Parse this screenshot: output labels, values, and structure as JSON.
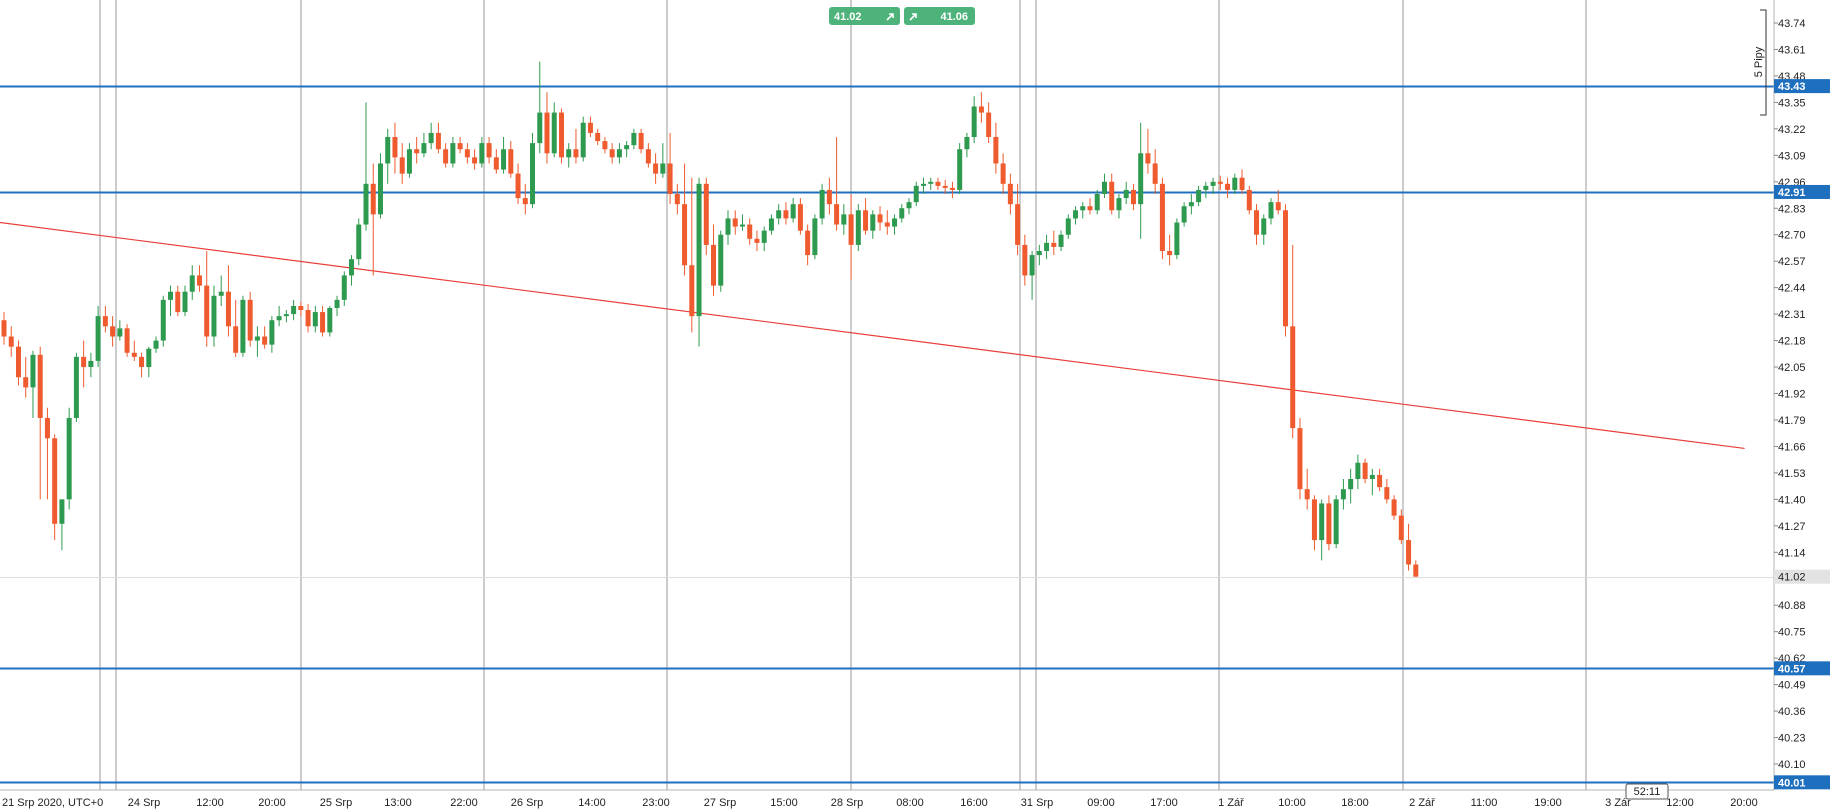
{
  "quote_buttons": {
    "sell_price": "41.02",
    "buy_price": "41.06",
    "sell_arrow": "arrow-up-right-icon",
    "buy_arrow": "arrow-up-right-icon"
  },
  "pip_ruler_label": "5 Pipy",
  "countdown": "52:11",
  "colors": {
    "up": "#2e9a4f",
    "down": "#ef5a2e",
    "hline": "#1f6fbf",
    "trend": "#e8403b",
    "grid": "#9a9a9a",
    "button": "#4db37a"
  },
  "chart_data": {
    "type": "candlestick",
    "title": "",
    "xlabel": "",
    "ylabel": "",
    "ylim": [
      40.0,
      43.8
    ],
    "grid": "vertical-only",
    "y_ticks": [
      "43.74",
      "43.61",
      "43.48",
      "43.35",
      "43.22",
      "43.09",
      "42.96",
      "42.83",
      "42.70",
      "42.57",
      "42.44",
      "42.31",
      "42.18",
      "42.05",
      "41.92",
      "41.79",
      "41.66",
      "41.53",
      "41.40",
      "41.27",
      "41.14",
      "40.88",
      "40.75",
      "40.62",
      "40.49",
      "40.36",
      "40.23",
      "40.10"
    ],
    "x_labels": [
      "21 Srp 2020, UTC+0",
      "24 Srp",
      "12:00",
      "20:00",
      "25 Srp",
      "13:00",
      "22:00",
      "26 Srp",
      "14:00",
      "23:00",
      "27 Srp",
      "15:00",
      "28 Srp",
      "08:00",
      "16:00",
      "31 Srp",
      "09:00",
      "17:00",
      "1 Zář",
      "10:00",
      "18:00",
      "2 Zář",
      "11:00",
      "19:00",
      "3 Zář",
      "12:00",
      "20:00"
    ],
    "horizontal_lines": [
      {
        "price": 43.43,
        "label": "43.43"
      },
      {
        "price": 42.91,
        "label": "42.91"
      },
      {
        "price": 40.57,
        "label": "40.57"
      },
      {
        "price": 40.01,
        "label": "40.01"
      }
    ],
    "current_price": {
      "price": 41.02,
      "label": "41.02"
    },
    "trendline": {
      "from": {
        "index": 0,
        "price": 42.76
      },
      "to": {
        "index": 240,
        "price": 41.65
      }
    },
    "candles": [
      [
        42.28,
        42.32,
        42.16,
        42.2
      ],
      [
        42.2,
        42.25,
        42.1,
        42.15
      ],
      [
        42.15,
        42.18,
        41.96,
        42.0
      ],
      [
        42.0,
        42.1,
        41.9,
        41.95
      ],
      [
        41.95,
        42.13,
        41.8,
        42.11
      ],
      [
        42.11,
        42.15,
        41.4,
        41.8
      ],
      [
        41.8,
        41.85,
        41.4,
        41.7
      ],
      [
        41.7,
        41.72,
        41.2,
        41.28
      ],
      [
        41.28,
        41.4,
        41.15,
        41.4
      ],
      [
        41.4,
        41.85,
        41.35,
        41.8
      ],
      [
        41.8,
        42.12,
        41.78,
        42.1
      ],
      [
        42.1,
        42.18,
        41.95,
        42.05
      ],
      [
        42.05,
        42.12,
        42.0,
        42.08
      ],
      [
        42.08,
        42.35,
        42.05,
        42.3
      ],
      [
        42.3,
        42.35,
        42.22,
        42.25
      ],
      [
        42.25,
        42.3,
        42.15,
        42.2
      ],
      [
        42.2,
        42.28,
        42.18,
        42.24
      ],
      [
        42.24,
        42.26,
        42.1,
        42.12
      ],
      [
        42.12,
        42.18,
        42.08,
        42.1
      ],
      [
        42.1,
        42.12,
        42.0,
        42.05
      ],
      [
        42.05,
        42.15,
        42.0,
        42.14
      ],
      [
        42.14,
        42.2,
        42.12,
        42.18
      ],
      [
        42.18,
        42.4,
        42.15,
        42.38
      ],
      [
        42.38,
        42.45,
        42.3,
        42.42
      ],
      [
        42.42,
        42.45,
        42.3,
        42.32
      ],
      [
        42.32,
        42.45,
        42.3,
        42.42
      ],
      [
        42.42,
        42.55,
        42.38,
        42.5
      ],
      [
        42.5,
        42.55,
        42.42,
        42.45
      ],
      [
        42.45,
        42.62,
        42.15,
        42.2
      ],
      [
        42.2,
        42.45,
        42.15,
        42.4
      ],
      [
        42.4,
        42.5,
        42.35,
        42.42
      ],
      [
        42.42,
        42.55,
        42.2,
        42.25
      ],
      [
        42.25,
        42.38,
        42.1,
        42.12
      ],
      [
        42.12,
        42.4,
        42.1,
        42.38
      ],
      [
        42.38,
        42.42,
        42.15,
        42.18
      ],
      [
        42.18,
        42.25,
        42.1,
        42.2
      ],
      [
        42.2,
        42.25,
        42.14,
        42.16
      ],
      [
        42.16,
        42.3,
        42.12,
        42.28
      ],
      [
        42.28,
        42.35,
        42.25,
        42.3
      ],
      [
        42.3,
        42.33,
        42.27,
        42.31
      ],
      [
        42.31,
        42.38,
        42.28,
        42.35
      ],
      [
        42.35,
        42.37,
        42.3,
        42.33
      ],
      [
        42.33,
        42.36,
        42.22,
        42.25
      ],
      [
        42.25,
        42.35,
        42.22,
        42.32
      ],
      [
        42.32,
        42.35,
        42.2,
        42.22
      ],
      [
        42.22,
        42.35,
        42.2,
        42.34
      ],
      [
        42.34,
        42.4,
        42.3,
        42.38
      ],
      [
        42.38,
        42.52,
        42.35,
        42.5
      ],
      [
        42.5,
        42.6,
        42.45,
        42.58
      ],
      [
        42.58,
        42.78,
        42.55,
        42.75
      ],
      [
        42.75,
        43.35,
        42.72,
        42.95
      ],
      [
        42.95,
        43.05,
        42.5,
        42.8
      ],
      [
        42.8,
        43.1,
        42.78,
        43.05
      ],
      [
        43.05,
        43.22,
        42.95,
        43.18
      ],
      [
        43.18,
        43.25,
        43.0,
        43.08
      ],
      [
        43.08,
        43.15,
        42.95,
        43.0
      ],
      [
        43.0,
        43.15,
        42.98,
        43.12
      ],
      [
        43.12,
        43.18,
        43.05,
        43.1
      ],
      [
        43.1,
        43.2,
        43.08,
        43.15
      ],
      [
        43.15,
        43.25,
        43.12,
        43.2
      ],
      [
        43.2,
        43.25,
        43.1,
        43.12
      ],
      [
        43.12,
        43.15,
        43.03,
        43.05
      ],
      [
        43.05,
        43.18,
        43.03,
        43.15
      ],
      [
        43.15,
        43.18,
        43.1,
        43.12
      ],
      [
        43.12,
        43.15,
        43.05,
        43.08
      ],
      [
        43.08,
        43.12,
        43.02,
        43.05
      ],
      [
        43.05,
        43.18,
        43.03,
        43.15
      ],
      [
        43.15,
        43.18,
        43.05,
        43.08
      ],
      [
        43.08,
        43.12,
        43.0,
        43.02
      ],
      [
        43.02,
        43.18,
        43.0,
        43.12
      ],
      [
        43.12,
        43.16,
        42.98,
        43.0
      ],
      [
        43.0,
        43.05,
        42.85,
        42.88
      ],
      [
        42.88,
        42.95,
        42.8,
        42.85
      ],
      [
        42.85,
        43.2,
        42.83,
        43.15
      ],
      [
        43.15,
        43.55,
        43.1,
        43.3
      ],
      [
        43.3,
        43.4,
        43.05,
        43.1
      ],
      [
        43.1,
        43.35,
        43.08,
        43.3
      ],
      [
        43.3,
        43.32,
        43.05,
        43.08
      ],
      [
        43.08,
        43.15,
        43.03,
        43.12
      ],
      [
        43.12,
        43.22,
        43.05,
        43.08
      ],
      [
        43.08,
        43.28,
        43.06,
        43.25
      ],
      [
        43.25,
        43.28,
        43.18,
        43.2
      ],
      [
        43.2,
        43.22,
        43.14,
        43.16
      ],
      [
        43.16,
        43.18,
        43.1,
        43.12
      ],
      [
        43.12,
        43.15,
        43.05,
        43.08
      ],
      [
        43.08,
        43.15,
        43.05,
        43.12
      ],
      [
        43.12,
        43.16,
        43.08,
        43.14
      ],
      [
        43.14,
        43.22,
        43.12,
        43.2
      ],
      [
        43.2,
        43.22,
        43.1,
        43.12
      ],
      [
        43.12,
        43.15,
        43.03,
        43.05
      ],
      [
        43.05,
        43.1,
        42.95,
        43.0
      ],
      [
        43.0,
        43.15,
        42.98,
        43.05
      ],
      [
        43.05,
        43.2,
        42.85,
        42.9
      ],
      [
        42.9,
        42.95,
        42.8,
        42.85
      ],
      [
        42.85,
        43.05,
        42.5,
        42.55
      ],
      [
        42.55,
        42.98,
        42.22,
        42.3
      ],
      [
        42.3,
        42.98,
        42.15,
        42.95
      ],
      [
        42.95,
        42.98,
        42.6,
        42.65
      ],
      [
        42.65,
        42.75,
        42.4,
        42.45
      ],
      [
        42.45,
        42.72,
        42.42,
        42.7
      ],
      [
        42.7,
        42.82,
        42.65,
        42.78
      ],
      [
        42.78,
        42.82,
        42.7,
        42.74
      ],
      [
        42.74,
        42.8,
        42.72,
        42.75
      ],
      [
        42.75,
        42.78,
        42.65,
        42.68
      ],
      [
        42.68,
        42.72,
        42.62,
        42.66
      ],
      [
        42.66,
        42.74,
        42.62,
        42.72
      ],
      [
        42.72,
        42.8,
        42.7,
        42.78
      ],
      [
        42.78,
        42.85,
        42.75,
        42.82
      ],
      [
        42.82,
        42.86,
        42.75,
        42.78
      ],
      [
        42.78,
        42.88,
        42.76,
        42.85
      ],
      [
        42.85,
        42.88,
        42.7,
        42.72
      ],
      [
        42.72,
        42.75,
        42.55,
        42.6
      ],
      [
        42.6,
        42.8,
        42.58,
        42.78
      ],
      [
        42.78,
        42.95,
        42.75,
        42.92
      ],
      [
        42.92,
        42.98,
        42.8,
        42.85
      ],
      [
        42.85,
        43.18,
        42.72,
        42.75
      ],
      [
        42.75,
        42.85,
        42.7,
        42.8
      ],
      [
        42.8,
        42.9,
        42.48,
        42.65
      ],
      [
        42.65,
        42.85,
        42.62,
        42.82
      ],
      [
        42.82,
        42.88,
        42.7,
        42.72
      ],
      [
        42.72,
        42.82,
        42.68,
        42.8
      ],
      [
        42.8,
        42.84,
        42.72,
        42.76
      ],
      [
        42.76,
        42.82,
        42.7,
        42.74
      ],
      [
        42.74,
        42.8,
        42.7,
        42.78
      ],
      [
        42.78,
        42.85,
        42.76,
        42.83
      ],
      [
        42.83,
        42.88,
        42.8,
        42.86
      ],
      [
        42.86,
        42.96,
        42.84,
        42.94
      ],
      [
        42.94,
        42.98,
        42.9,
        42.95
      ],
      [
        42.95,
        42.98,
        42.92,
        42.96
      ],
      [
        42.96,
        42.98,
        42.92,
        42.94
      ],
      [
        42.94,
        42.97,
        42.9,
        42.93
      ],
      [
        42.93,
        42.96,
        42.88,
        42.92
      ],
      [
        42.92,
        43.15,
        42.9,
        43.12
      ],
      [
        43.12,
        43.2,
        43.08,
        43.18
      ],
      [
        43.18,
        43.38,
        43.15,
        43.33
      ],
      [
        43.33,
        43.4,
        43.25,
        43.3
      ],
      [
        43.3,
        43.35,
        43.15,
        43.18
      ],
      [
        43.18,
        43.25,
        43.0,
        43.05
      ],
      [
        43.05,
        43.1,
        42.9,
        42.95
      ],
      [
        42.95,
        43.0,
        42.8,
        42.85
      ],
      [
        42.85,
        42.95,
        42.6,
        42.65
      ],
      [
        42.65,
        42.7,
        42.45,
        42.5
      ],
      [
        42.5,
        42.62,
        42.38,
        42.6
      ],
      [
        42.6,
        42.65,
        42.55,
        42.62
      ],
      [
        42.62,
        42.7,
        42.58,
        42.66
      ],
      [
        42.66,
        42.72,
        42.6,
        42.64
      ],
      [
        42.64,
        42.72,
        42.62,
        42.7
      ],
      [
        42.7,
        42.8,
        42.68,
        42.78
      ],
      [
        42.78,
        42.84,
        42.75,
        42.82
      ],
      [
        42.82,
        42.86,
        42.78,
        42.84
      ],
      [
        42.84,
        42.88,
        42.8,
        42.82
      ],
      [
        42.82,
        42.92,
        42.8,
        42.9
      ],
      [
        42.9,
        43.0,
        42.88,
        42.96
      ],
      [
        42.96,
        43.0,
        42.8,
        42.82
      ],
      [
        42.82,
        42.9,
        42.78,
        42.88
      ],
      [
        42.88,
        42.96,
        42.85,
        42.92
      ],
      [
        42.92,
        42.95,
        42.82,
        42.85
      ],
      [
        42.85,
        43.25,
        42.68,
        43.1
      ],
      [
        43.1,
        43.22,
        43.0,
        43.05
      ],
      [
        43.05,
        43.12,
        42.9,
        42.95
      ],
      [
        42.95,
        42.98,
        42.58,
        42.62
      ],
      [
        42.62,
        42.7,
        42.55,
        42.6
      ],
      [
        42.6,
        42.78,
        42.58,
        42.76
      ],
      [
        42.76,
        42.86,
        42.74,
        42.84
      ],
      [
        42.84,
        42.9,
        42.8,
        42.86
      ],
      [
        42.86,
        42.94,
        42.84,
        42.92
      ],
      [
        42.92,
        42.96,
        42.88,
        42.94
      ],
      [
        42.94,
        42.98,
        42.9,
        42.96
      ],
      [
        42.96,
        42.99,
        42.92,
        42.95
      ],
      [
        42.95,
        42.98,
        42.88,
        42.92
      ],
      [
        42.92,
        43.0,
        42.9,
        42.98
      ],
      [
        42.98,
        43.02,
        42.9,
        42.92
      ],
      [
        42.92,
        42.94,
        42.8,
        42.82
      ],
      [
        42.82,
        42.85,
        42.65,
        42.7
      ],
      [
        42.7,
        42.8,
        42.65,
        42.78
      ],
      [
        42.78,
        42.88,
        42.75,
        42.86
      ],
      [
        42.86,
        42.92,
        42.8,
        42.82
      ],
      [
        42.82,
        42.85,
        42.2,
        42.25
      ],
      [
        42.25,
        42.65,
        41.7,
        41.75
      ],
      [
        41.75,
        41.8,
        41.4,
        41.45
      ],
      [
        41.45,
        41.55,
        41.35,
        41.4
      ],
      [
        41.4,
        41.42,
        41.15,
        41.2
      ],
      [
        41.2,
        41.4,
        41.1,
        41.38
      ],
      [
        41.38,
        41.42,
        41.15,
        41.18
      ],
      [
        41.18,
        41.42,
        41.16,
        41.4
      ],
      [
        41.4,
        41.5,
        41.35,
        41.45
      ],
      [
        41.45,
        41.55,
        41.38,
        41.5
      ],
      [
        41.5,
        41.62,
        41.45,
        41.58
      ],
      [
        41.58,
        41.6,
        41.48,
        41.5
      ],
      [
        41.5,
        41.55,
        41.42,
        41.52
      ],
      [
        41.52,
        41.55,
        41.44,
        41.46
      ],
      [
        41.46,
        41.5,
        41.38,
        41.4
      ],
      [
        41.4,
        41.42,
        41.3,
        41.32
      ],
      [
        41.32,
        41.35,
        41.18,
        41.2
      ],
      [
        41.2,
        41.28,
        41.05,
        41.08
      ],
      [
        41.08,
        41.1,
        41.02,
        41.02
      ]
    ]
  }
}
